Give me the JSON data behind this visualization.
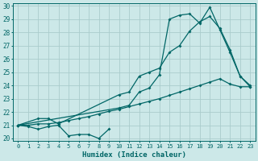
{
  "background_color": "#cce8e8",
  "grid_color": "#aacccc",
  "line_color": "#006666",
  "xlim": [
    -0.5,
    23.5
  ],
  "ylim": [
    19.8,
    30.2
  ],
  "xtick_labels": [
    "0",
    "1",
    "2",
    "3",
    "4",
    "5",
    "6",
    "7",
    "8",
    "9",
    "10",
    "11",
    "12",
    "13",
    "14",
    "15",
    "16",
    "17",
    "18",
    "19",
    "20",
    "21",
    "22",
    "23"
  ],
  "ytick_vals": [
    20,
    21,
    22,
    23,
    24,
    25,
    26,
    27,
    28,
    29,
    30
  ],
  "xlabel": "Humidex (Indice chaleur)",
  "line1_x": [
    0,
    1,
    2,
    3,
    4,
    5,
    6,
    7,
    8,
    9
  ],
  "line1_y": [
    21.0,
    20.9,
    20.7,
    20.9,
    21.0,
    20.2,
    20.3,
    20.3,
    20.0,
    20.7
  ],
  "line2_x": [
    0,
    1,
    2,
    3,
    4,
    5,
    6,
    7,
    8,
    9,
    10,
    11,
    12,
    13,
    14,
    15,
    16,
    17,
    18,
    19,
    20,
    21,
    22,
    23
  ],
  "line2_y": [
    21.0,
    21.0,
    21.1,
    21.1,
    21.2,
    21.35,
    21.5,
    21.65,
    21.85,
    22.05,
    22.2,
    22.4,
    22.6,
    22.8,
    23.0,
    23.25,
    23.5,
    23.75,
    24.0,
    24.25,
    24.5,
    24.1,
    23.9,
    23.9
  ],
  "line3_x": [
    0,
    2,
    3,
    4,
    10,
    11,
    12,
    13,
    14,
    15,
    16,
    17,
    18,
    19,
    20,
    21,
    22,
    23
  ],
  "line3_y": [
    21.0,
    21.5,
    21.5,
    21.1,
    23.3,
    23.5,
    24.7,
    25.0,
    25.3,
    26.5,
    27.0,
    28.1,
    28.8,
    29.2,
    28.3,
    26.7,
    24.7,
    24.0
  ],
  "line4_x": [
    0,
    10,
    11,
    12,
    13,
    14,
    15,
    16,
    17,
    18,
    19,
    20,
    21,
    22,
    23
  ],
  "line4_y": [
    21.0,
    22.3,
    22.5,
    23.5,
    23.8,
    24.8,
    29.0,
    29.3,
    29.4,
    28.7,
    29.9,
    28.2,
    26.5,
    24.7,
    23.9
  ]
}
